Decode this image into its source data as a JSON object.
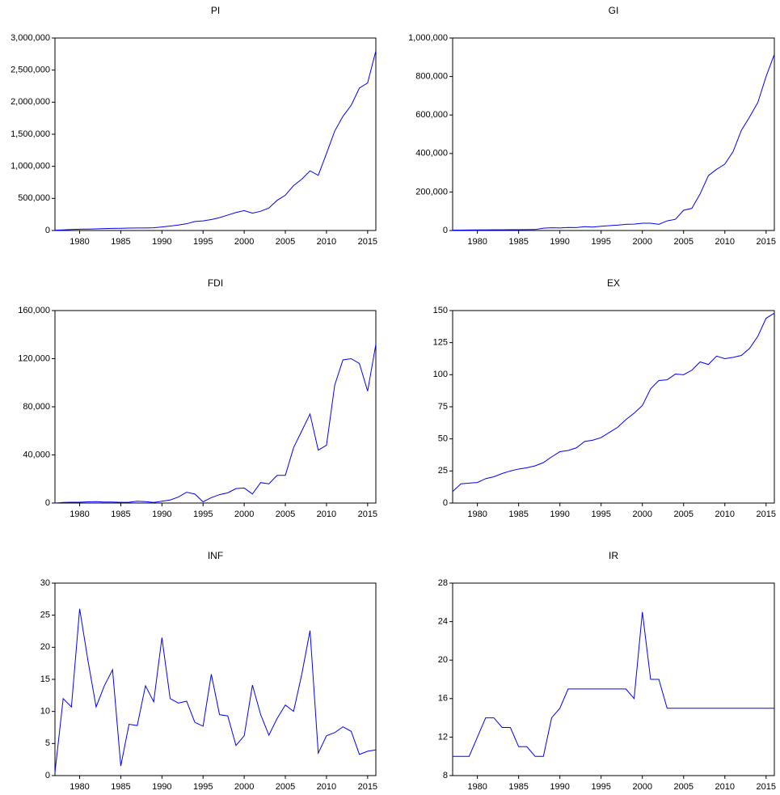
{
  "chart_data": [
    {
      "type": "line",
      "title": "PI",
      "x": [
        1977,
        1978,
        1979,
        1980,
        1981,
        1982,
        1983,
        1984,
        1985,
        1986,
        1987,
        1988,
        1989,
        1990,
        1991,
        1992,
        1993,
        1994,
        1995,
        1996,
        1997,
        1998,
        1999,
        2000,
        2001,
        2002,
        2003,
        2004,
        2005,
        2006,
        2007,
        2008,
        2009,
        2010,
        2011,
        2012,
        2013,
        2014,
        2015,
        2016
      ],
      "values": [
        5000,
        10000,
        15000,
        20000,
        22000,
        25000,
        30000,
        33000,
        35000,
        37000,
        40000,
        40000,
        42000,
        55000,
        70000,
        85000,
        105000,
        140000,
        150000,
        170000,
        200000,
        240000,
        280000,
        310000,
        270000,
        300000,
        350000,
        470000,
        550000,
        700000,
        800000,
        930000,
        860000,
        1200000,
        1550000,
        1780000,
        1950000,
        2220000,
        2300000,
        2800000
      ],
      "color": "#0000ff",
      "xlim": [
        1977,
        2016
      ],
      "xticks": [
        1980,
        1985,
        1990,
        1995,
        2000,
        2005,
        2010,
        2015
      ],
      "ylim": [
        0,
        3000000
      ],
      "yticks": [
        0,
        {
          "value": 500000,
          "label": "500,000"
        },
        {
          "value": 1000000,
          "label": "1,000,000"
        },
        {
          "value": 1500000,
          "label": "1,500,000"
        },
        {
          "value": 2000000,
          "label": "2,000,000"
        },
        {
          "value": 2500000,
          "label": "2,500,000"
        },
        {
          "value": 3000000,
          "label": "3,000,000"
        }
      ]
    },
    {
      "type": "line",
      "title": "GI",
      "x": [
        1977,
        1978,
        1979,
        1980,
        1981,
        1982,
        1983,
        1984,
        1985,
        1986,
        1987,
        1988,
        1989,
        1990,
        1991,
        1992,
        1993,
        1994,
        1995,
        1996,
        1997,
        1998,
        1999,
        2000,
        2001,
        2002,
        2003,
        2004,
        2005,
        2006,
        2007,
        2008,
        2009,
        2010,
        2011,
        2012,
        2013,
        2014,
        2015,
        2016
      ],
      "values": [
        2000,
        2000,
        2500,
        3000,
        3000,
        3500,
        3500,
        4000,
        4000,
        4500,
        5000,
        12000,
        14000,
        13000,
        16000,
        15000,
        20000,
        18000,
        22000,
        25000,
        28000,
        32000,
        33000,
        38000,
        38000,
        32000,
        50000,
        58000,
        105000,
        115000,
        190000,
        285000,
        318000,
        345000,
        410000,
        520000,
        590000,
        665000,
        800000,
        915000
      ],
      "color": "#0000ff",
      "xlim": [
        1977,
        2016
      ],
      "xticks": [
        1980,
        1985,
        1990,
        1995,
        2000,
        2005,
        2010,
        2015
      ],
      "ylim": [
        0,
        1000000
      ],
      "yticks": [
        0,
        {
          "value": 200000,
          "label": "200,000"
        },
        {
          "value": 400000,
          "label": "400,000"
        },
        {
          "value": 600000,
          "label": "600,000"
        },
        {
          "value": 800000,
          "label": "800,000"
        },
        {
          "value": 1000000,
          "label": "1,000,000"
        }
      ]
    },
    {
      "type": "line",
      "title": "FDI",
      "x": [
        1977,
        1978,
        1979,
        1980,
        1981,
        1982,
        1983,
        1984,
        1985,
        1986,
        1987,
        1988,
        1989,
        1990,
        1991,
        1992,
        1993,
        1994,
        1995,
        1996,
        1997,
        1998,
        1999,
        2000,
        2001,
        2002,
        2003,
        2004,
        2005,
        2006,
        2007,
        2008,
        2009,
        2010,
        2011,
        2012,
        2013,
        2014,
        2015,
        2016
      ],
      "values": [
        0,
        500,
        700,
        700,
        1000,
        1200,
        800,
        800,
        600,
        700,
        1500,
        1200,
        500,
        1500,
        2500,
        5000,
        9000,
        7500,
        1000,
        4500,
        7000,
        8500,
        12000,
        12500,
        7500,
        17000,
        16000,
        23000,
        23000,
        46000,
        60000,
        74000,
        44000,
        48000,
        98000,
        119000,
        120000,
        116000,
        93000,
        132000
      ],
      "color": "#0000ff",
      "xlim": [
        1977,
        2016
      ],
      "xticks": [
        1980,
        1985,
        1990,
        1995,
        2000,
        2005,
        2010,
        2015
      ],
      "ylim": [
        0,
        160000
      ],
      "yticks": [
        0,
        {
          "value": 40000,
          "label": "40,000"
        },
        {
          "value": 80000,
          "label": "80,000"
        },
        {
          "value": 120000,
          "label": "120,000"
        },
        {
          "value": 160000,
          "label": "160,000"
        }
      ]
    },
    {
      "type": "line",
      "title": "EX",
      "x": [
        1977,
        1978,
        1979,
        1980,
        1981,
        1982,
        1983,
        1984,
        1985,
        1986,
        1987,
        1988,
        1989,
        1990,
        1991,
        1992,
        1993,
        1994,
        1995,
        1996,
        1997,
        1998,
        1999,
        2000,
        2001,
        2002,
        2003,
        2004,
        2005,
        2006,
        2007,
        2008,
        2009,
        2010,
        2011,
        2012,
        2013,
        2014,
        2015,
        2016
      ],
      "values": [
        9,
        15,
        15.5,
        16,
        19,
        20.5,
        23,
        25,
        26.5,
        27.5,
        29,
        31.5,
        36,
        40,
        41,
        43,
        48,
        49,
        51,
        55,
        59,
        65,
        70,
        76,
        89,
        95.5,
        96,
        100.5,
        100,
        103.5,
        110,
        108,
        114.5,
        112.5,
        113.5,
        115,
        120.5,
        130,
        144,
        148
      ],
      "color": "#0000ff",
      "xlim": [
        1977,
        2016
      ],
      "xticks": [
        1980,
        1985,
        1990,
        1995,
        2000,
        2005,
        2010,
        2015
      ],
      "ylim": [
        0,
        150
      ],
      "yticks": [
        0,
        25,
        50,
        75,
        100,
        125,
        150
      ]
    },
    {
      "type": "line",
      "title": "INF",
      "x": [
        1977,
        1978,
        1979,
        1980,
        1981,
        1982,
        1983,
        1984,
        1985,
        1986,
        1987,
        1988,
        1989,
        1990,
        1991,
        1992,
        1993,
        1994,
        1995,
        1996,
        1997,
        1998,
        1999,
        2000,
        2001,
        2002,
        2003,
        2004,
        2005,
        2006,
        2007,
        2008,
        2009,
        2010,
        2011,
        2012,
        2013,
        2014,
        2015,
        2016
      ],
      "values": [
        0.5,
        12,
        10.7,
        26,
        18,
        10.7,
        14,
        16.5,
        1.5,
        8,
        7.8,
        14,
        11.5,
        21.5,
        12,
        11.3,
        11.6,
        8.3,
        7.7,
        15.8,
        9.5,
        9.3,
        4.7,
        6.2,
        14.1,
        9.5,
        6.3,
        8.9,
        11,
        10,
        15.8,
        22.6,
        3.5,
        6.2,
        6.7,
        7.6,
        6.9,
        3.3,
        3.8,
        4
      ],
      "color": "#0000ff",
      "xlim": [
        1977,
        2016
      ],
      "xticks": [
        1980,
        1985,
        1990,
        1995,
        2000,
        2005,
        2010,
        2015
      ],
      "ylim": [
        0,
        30
      ],
      "yticks": [
        0,
        5,
        10,
        15,
        20,
        25,
        30
      ]
    },
    {
      "type": "line",
      "title": "IR",
      "x": [
        1977,
        1978,
        1979,
        1980,
        1981,
        1982,
        1983,
        1984,
        1985,
        1986,
        1987,
        1988,
        1989,
        1990,
        1991,
        1992,
        1993,
        1994,
        1995,
        1996,
        1997,
        1998,
        1999,
        2000,
        2001,
        2002,
        2003,
        2004,
        2005,
        2006,
        2007,
        2008,
        2009,
        2010,
        2011,
        2012,
        2013,
        2014,
        2015,
        2016
      ],
      "values": [
        10,
        10,
        10,
        12,
        14,
        14,
        13,
        13,
        11,
        11,
        10,
        10,
        14,
        15,
        17,
        17,
        17,
        17,
        17,
        17,
        17,
        17,
        16,
        25,
        18,
        18,
        15,
        15,
        15,
        15,
        15,
        15,
        15,
        15,
        15,
        15,
        15,
        15,
        15,
        15
      ],
      "color": "#0000ff",
      "xlim": [
        1977,
        2016
      ],
      "xticks": [
        1980,
        1985,
        1990,
        1995,
        2000,
        2005,
        2010,
        2015
      ],
      "ylim": [
        8,
        28
      ],
      "yticks": [
        8,
        12,
        16,
        20,
        24,
        28
      ]
    }
  ]
}
